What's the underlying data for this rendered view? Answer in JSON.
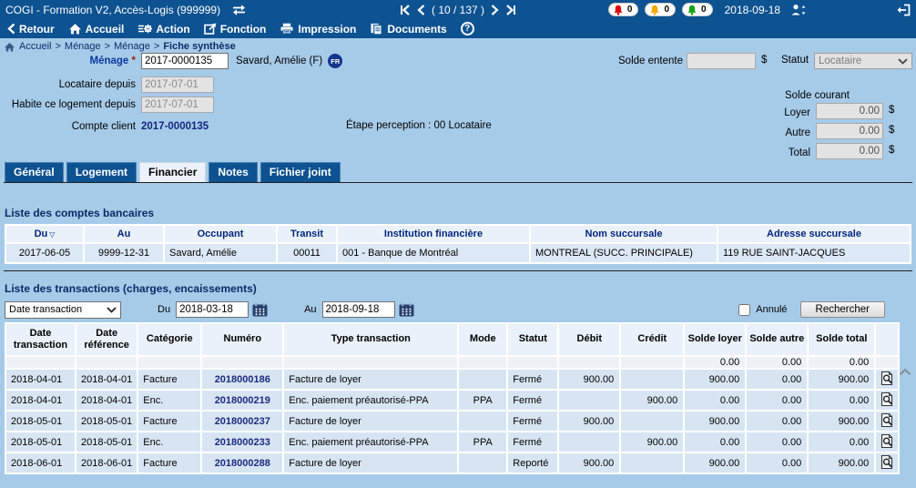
{
  "titlebar": {
    "app_title": "COGI - Formation V2, Accès-Logis (999999)",
    "pagination_text": "( 10 / 137 )",
    "alerts": [
      {
        "label": "alert-red",
        "count": "0",
        "color": "#dd0000"
      },
      {
        "label": "alert-yellow",
        "count": "0",
        "color": "#f0a800"
      },
      {
        "label": "alert-green",
        "count": "0",
        "color": "#12a412"
      }
    ],
    "date": "2018-09-18"
  },
  "nav": {
    "items": [
      "Retour",
      "Accueil",
      "Action",
      "Fonction",
      "Impression",
      "Documents"
    ],
    "help_label": "?"
  },
  "breadcrumb": {
    "items": [
      "Accueil",
      "Ménage",
      "Ménage"
    ],
    "separator": ">",
    "current": "Fiche synthèse"
  },
  "form": {
    "menage_label": "Ménage",
    "required_marker": "*",
    "menage_value": "2017-0000135",
    "occupant_name": "Savard, Amélie (F)",
    "fr_badge": "FR",
    "solde_entente_label": "Solde entente",
    "solde_entente_value": "",
    "dollar": "$",
    "statut_label": "Statut",
    "statut_value": "Locataire",
    "locataire_depuis_label": "Locataire depuis",
    "locataire_depuis_value": "2017-07-01",
    "habite_label": "Habite ce logement depuis",
    "habite_value": "2017-07-01",
    "solde_courant_label": "Solde courant",
    "loyer_label": "Loyer",
    "loyer_value": "0.00",
    "autre_label": "Autre",
    "autre_value": "0.00",
    "total_label": "Total",
    "total_value": "0.00",
    "compte_client_label": "Compte client",
    "compte_client_value": "2017-0000135",
    "etape_text": "Étape perception : 00 Locataire"
  },
  "tabs": {
    "items": [
      {
        "label": "Général",
        "active": false
      },
      {
        "label": "Logement",
        "active": false
      },
      {
        "label": "Financier",
        "active": true
      },
      {
        "label": "Notes",
        "active": false
      },
      {
        "label": "Fichier joint",
        "active": false
      }
    ]
  },
  "bank": {
    "title": "Liste des comptes bancaires",
    "headers": [
      "Du",
      "Au",
      "Occupant",
      "Transit",
      "Institution financière",
      "Nom succursale",
      "Adresse succursale"
    ],
    "sort_glyph": "▽",
    "row": [
      "2017-06-05",
      "9999-12-31",
      "Savard, Amélie",
      "00011",
      "001 - Banque de Montréal",
      "MONTREAL (SUCC. PRINCIPALE)",
      "119 RUE SAINT-JACQUES"
    ]
  },
  "transactions": {
    "title": "Liste des transactions (charges, encaissements)",
    "filter": {
      "type_value": "Date transaction",
      "du_label": "Du",
      "du_value": "2018-03-18",
      "au_label": "Au",
      "au_value": "2018-09-18",
      "annule_label": "Annulé",
      "search_label": "Rechercher"
    },
    "headers": [
      "Date transaction",
      "Date référence",
      "Catégorie",
      "Numéro",
      "Type transaction",
      "Mode",
      "Statut",
      "Débit",
      "Crédit",
      "Solde loyer",
      "Solde autre",
      "Solde total"
    ],
    "summary_row": {
      "solde_loyer": "0.00",
      "solde_autre": "0.00",
      "solde_total": "0.00"
    },
    "rows": [
      {
        "date_transaction": "2018-04-01",
        "date_reference": "2018-04-01",
        "categorie": "Facture",
        "numero": "2018000186",
        "type": "Facture de loyer",
        "mode": "",
        "statut": "Fermé",
        "debit": "900.00",
        "credit": "",
        "solde_loyer": "900.00",
        "solde_autre": "0.00",
        "solde_total": "900.00"
      },
      {
        "date_transaction": "2018-04-01",
        "date_reference": "2018-04-01",
        "categorie": "Enc.",
        "numero": "2018000219",
        "type": "Enc. paiement préautorisé-PPA",
        "mode": "PPA",
        "statut": "Fermé",
        "debit": "",
        "credit": "900.00",
        "solde_loyer": "0.00",
        "solde_autre": "0.00",
        "solde_total": "0.00"
      },
      {
        "date_transaction": "2018-05-01",
        "date_reference": "2018-05-01",
        "categorie": "Facture",
        "numero": "2018000237",
        "type": "Facture de loyer",
        "mode": "",
        "statut": "Fermé",
        "debit": "900.00",
        "credit": "",
        "solde_loyer": "900.00",
        "solde_autre": "0.00",
        "solde_total": "900.00"
      },
      {
        "date_transaction": "2018-05-01",
        "date_reference": "2018-05-01",
        "categorie": "Enc.",
        "numero": "2018000233",
        "type": "Enc. paiement préautorisé-PPA",
        "mode": "PPA",
        "statut": "Fermé",
        "debit": "",
        "credit": "900.00",
        "solde_loyer": "0.00",
        "solde_autre": "0.00",
        "solde_total": "0.00"
      },
      {
        "date_transaction": "2018-06-01",
        "date_reference": "2018-06-01",
        "categorie": "Facture",
        "numero": "2018000288",
        "type": "Facture de loyer",
        "mode": "",
        "statut": "Reporté",
        "debit": "900.00",
        "credit": "",
        "solde_loyer": "900.00",
        "solde_autre": "0.00",
        "solde_total": "900.00"
      }
    ]
  }
}
